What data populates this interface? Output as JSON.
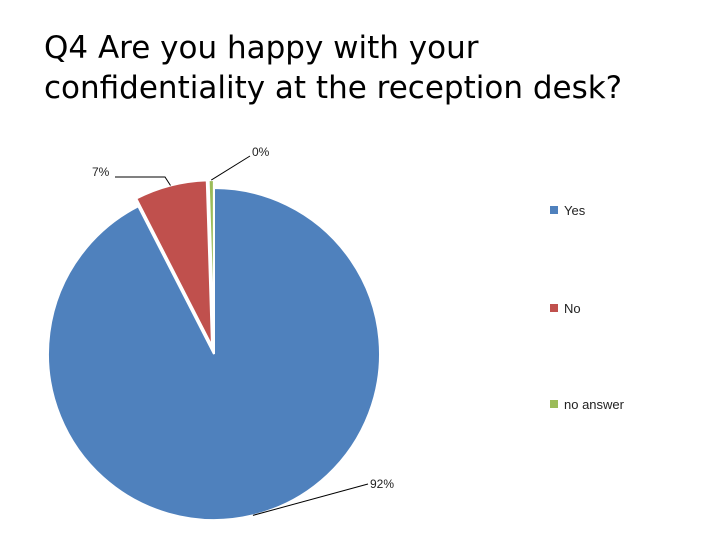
{
  "slide": {
    "title": "Q4  Are you happy with your\nconfidentiality at the reception desk?"
  },
  "chart_data": {
    "type": "pie",
    "categories": [
      "Yes",
      "No",
      "no answer"
    ],
    "values": [
      92,
      7,
      0.5
    ],
    "data_labels": [
      "92%",
      "7%",
      "0%"
    ],
    "colors": [
      "#4F81BD",
      "#C0504D",
      "#9BBB59"
    ],
    "exploded": true,
    "legend_position": "right"
  }
}
